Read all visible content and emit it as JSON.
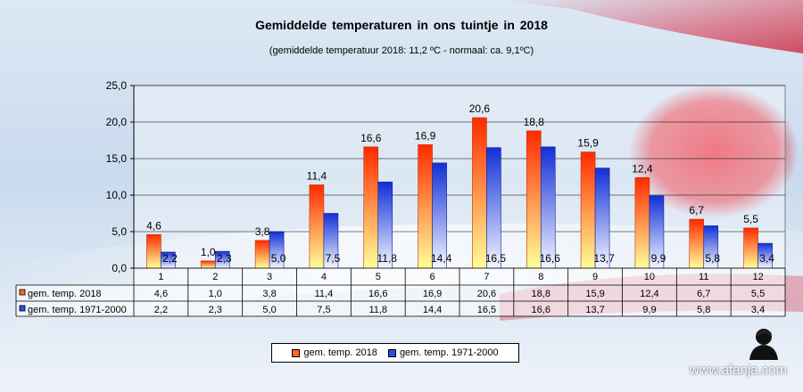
{
  "page": {
    "title": "Gemiddelde  temperaturen  in  ons  tuintje  in  2018",
    "subtitle": "(gemiddelde temperatuur 2018: 11,2 ºC - normaal: ca. 9,1ºC)",
    "watermark": "www.afanja.com"
  },
  "colors": {
    "series_2018_top": "#ff2a00",
    "series_2018_bottom": "#ffff99",
    "series_normal_top": "#1030d8",
    "series_normal_bottom": "#f4f6ff",
    "plot_bg": "#ffffff",
    "flag_red": "#e3283a"
  },
  "chart_data": {
    "type": "bar",
    "categories": [
      "1",
      "2",
      "3",
      "4",
      "5",
      "6",
      "7",
      "8",
      "9",
      "10",
      "11",
      "12"
    ],
    "series": [
      {
        "name": "gem. temp. 2018",
        "values": [
          4.6,
          1.0,
          3.8,
          11.4,
          16.6,
          16.9,
          20.6,
          18.8,
          15.9,
          12.4,
          6.7,
          5.5
        ],
        "labels": [
          "4,6",
          "1,0",
          "3,8",
          "11,4",
          "16,6",
          "16,9",
          "20,6",
          "18,8",
          "15,9",
          "12,4",
          "6,7",
          "5,5"
        ]
      },
      {
        "name": "gem. temp. 1971-2000",
        "values": [
          2.2,
          2.3,
          5.0,
          7.5,
          11.8,
          14.4,
          16.5,
          16.6,
          13.7,
          9.9,
          5.8,
          3.4
        ],
        "labels": [
          "2,2",
          "2,3",
          "5,0",
          "7,5",
          "11,8",
          "14,4",
          "16,5",
          "16,6",
          "13,7",
          "9,9",
          "5,8",
          "3,4"
        ]
      }
    ],
    "ylim": [
      0,
      25
    ],
    "yticks": [
      "0,0",
      "5,0",
      "10,0",
      "15,0",
      "20,0",
      "25,0"
    ],
    "grid": true,
    "legend_position": "bottom",
    "data_table": true
  }
}
